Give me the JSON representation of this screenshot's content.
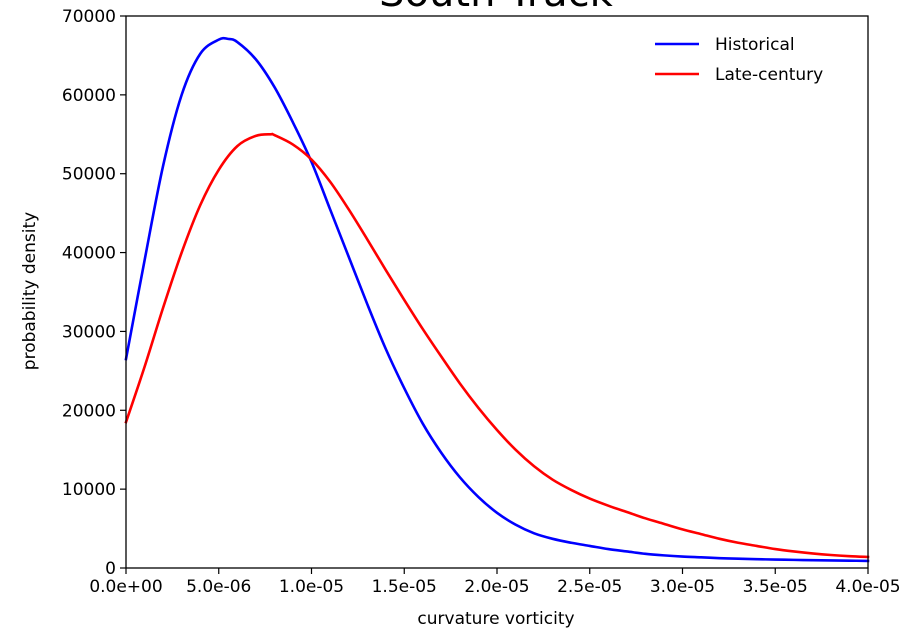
{
  "chart_data": {
    "type": "line",
    "title": "South Track",
    "xlabel": "curvature vorticity",
    "ylabel": "probability density",
    "xlim": [
      0,
      4e-05
    ],
    "ylim": [
      0,
      70000
    ],
    "x_tick_labels": [
      "0.0e+00",
      "5.0e-06",
      "1.0e-05",
      "1.5e-05",
      "2.0e-05",
      "2.5e-05",
      "3.0e-05",
      "3.5e-05",
      "4.0e-05"
    ],
    "y_tick_labels": [
      "0",
      "10000",
      "20000",
      "30000",
      "40000",
      "50000",
      "60000",
      "70000"
    ],
    "legend_position": "top-right",
    "grid": false,
    "series": [
      {
        "name": "Historical",
        "color": "#0000ff",
        "x": [
          0,
          1e-06,
          2e-06,
          3e-06,
          4e-06,
          5e-06,
          5.5e-06,
          6e-06,
          7e-06,
          8e-06,
          9e-06,
          1e-05,
          1.1e-05,
          1.2e-05,
          1.3e-05,
          1.4e-05,
          1.5e-05,
          1.6e-05,
          1.7e-05,
          1.8e-05,
          1.9e-05,
          2e-05,
          2.1e-05,
          2.2e-05,
          2.3e-05,
          2.4e-05,
          2.5e-05,
          2.6e-05,
          2.7e-05,
          2.8e-05,
          2.9e-05,
          3e-05,
          3.1e-05,
          3.2e-05,
          3.3e-05,
          3.4e-05,
          3.5e-05,
          3.6e-05,
          3.7e-05,
          3.8e-05,
          3.9e-05,
          4e-05
        ],
        "y": [
          26500,
          39000,
          51000,
          60000,
          65200,
          67000,
          67100,
          66700,
          64500,
          61000,
          56500,
          51500,
          45500,
          39500,
          33500,
          27800,
          22800,
          18300,
          14600,
          11500,
          9000,
          7000,
          5500,
          4400,
          3700,
          3200,
          2800,
          2400,
          2100,
          1800,
          1600,
          1450,
          1350,
          1250,
          1180,
          1120,
          1070,
          1030,
          990,
          960,
          930,
          900
        ]
      },
      {
        "name": "Late-century",
        "color": "#ff0000",
        "x": [
          0,
          1e-06,
          2e-06,
          3e-06,
          4e-06,
          5e-06,
          6e-06,
          7e-06,
          7.8e-06,
          8e-06,
          9e-06,
          1e-05,
          1.1e-05,
          1.2e-05,
          1.3e-05,
          1.4e-05,
          1.5e-05,
          1.6e-05,
          1.7e-05,
          1.8e-05,
          1.9e-05,
          2e-05,
          2.1e-05,
          2.2e-05,
          2.3e-05,
          2.4e-05,
          2.5e-05,
          2.6e-05,
          2.7e-05,
          2.8e-05,
          2.9e-05,
          3e-05,
          3.1e-05,
          3.2e-05,
          3.3e-05,
          3.4e-05,
          3.5e-05,
          3.6e-05,
          3.7e-05,
          3.8e-05,
          3.9e-05,
          4e-05
        ],
        "y": [
          18500,
          25500,
          33000,
          40000,
          46000,
          50500,
          53500,
          54800,
          55000,
          54900,
          53700,
          51800,
          49000,
          45500,
          41700,
          37800,
          34000,
          30300,
          26800,
          23400,
          20300,
          17500,
          15000,
          12900,
          11200,
          9900,
          8800,
          7900,
          7100,
          6300,
          5600,
          4900,
          4300,
          3700,
          3200,
          2800,
          2400,
          2100,
          1850,
          1650,
          1500,
          1400
        ]
      }
    ]
  }
}
